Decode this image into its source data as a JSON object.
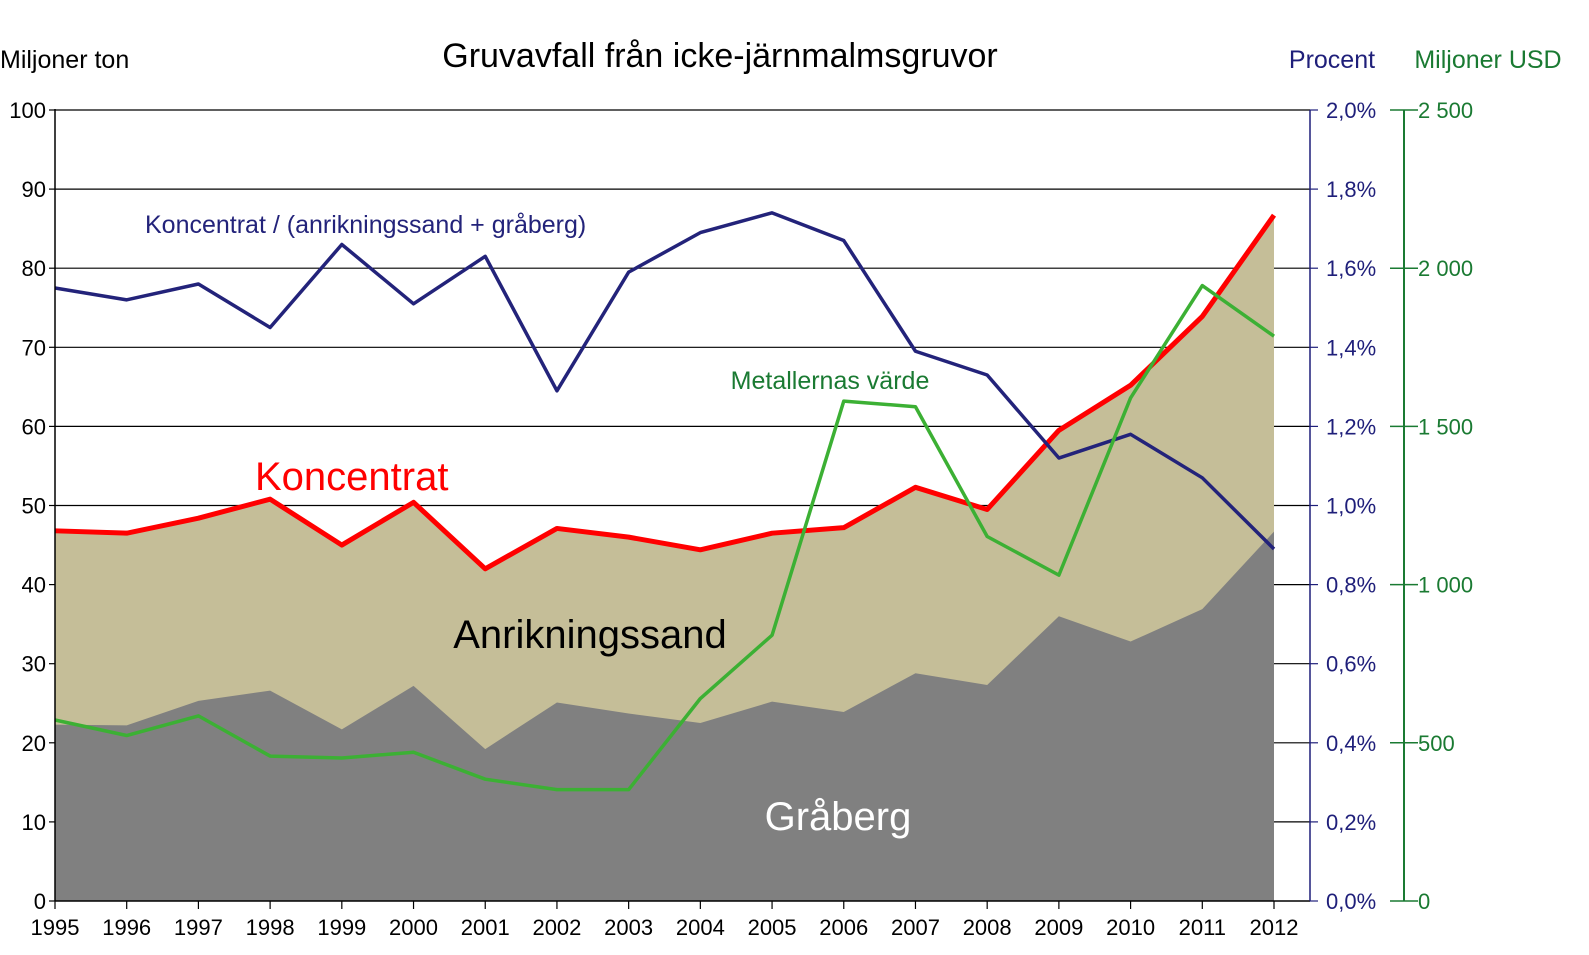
{
  "chart_data": {
    "type": "area",
    "title": "Gruvavfall från icke-järnmalmsgruvor",
    "left_axis": {
      "label": "Miljoner ton",
      "range": [
        0,
        100
      ],
      "ticks": [
        "0",
        "10",
        "20",
        "30",
        "40",
        "50",
        "60",
        "70",
        "80",
        "90",
        "100"
      ]
    },
    "right_axis_percent": {
      "label": "Procent",
      "range": [
        0,
        2.0
      ],
      "ticks": [
        "0,0%",
        "0,2%",
        "0,4%",
        "0,6%",
        "0,8%",
        "1,0%",
        "1,2%",
        "1,4%",
        "1,6%",
        "1,8%",
        "2,0%"
      ],
      "color": "#1f1f7a"
    },
    "right_axis_usd": {
      "label": "Miljoner USD",
      "range": [
        0,
        2500
      ],
      "ticks": [
        "0",
        "500",
        "1 000",
        "1 500",
        "2 000",
        "2 500"
      ],
      "color": "#1a7a32"
    },
    "x": [
      "1995",
      "1996",
      "1997",
      "1998",
      "1999",
      "2000",
      "2001",
      "2002",
      "2003",
      "2004",
      "2005",
      "2006",
      "2007",
      "2008",
      "2009",
      "2010",
      "2011",
      "2012"
    ],
    "series": [
      {
        "name": "Gråberg",
        "kind": "area",
        "axis": "left",
        "color": "#808080",
        "values": [
          22.3,
          22.2,
          25.3,
          26.6,
          21.7,
          27.2,
          19.2,
          25.1,
          23.7,
          22.5,
          25.2,
          23.9,
          28.8,
          27.3,
          36.0,
          32.8,
          36.9,
          46.7
        ]
      },
      {
        "name": "Anrikningssand",
        "kind": "area-stacked-top",
        "axis": "left",
        "color": "#c5be98",
        "values": [
          46.8,
          46.5,
          48.4,
          50.8,
          45.0,
          50.4,
          42.0,
          47.1,
          46.0,
          44.4,
          46.5,
          47.2,
          52.3,
          49.5,
          59.5,
          65.2,
          73.9,
          86.7
        ]
      },
      {
        "name": "Koncentrat",
        "kind": "line",
        "axis": "left",
        "color": "#ff0000",
        "values": [
          46.8,
          46.5,
          48.4,
          50.8,
          45.0,
          50.4,
          42.0,
          47.1,
          46.0,
          44.4,
          46.5,
          47.2,
          52.3,
          49.5,
          59.5,
          65.2,
          73.9,
          86.7
        ]
      },
      {
        "name": "Koncentrat / (anrikningssand + gråberg)",
        "kind": "line",
        "axis": "percent",
        "color": "#23237a",
        "values": [
          1.55,
          1.52,
          1.56,
          1.45,
          1.66,
          1.51,
          1.63,
          1.29,
          1.59,
          1.69,
          1.74,
          1.67,
          1.39,
          1.33,
          1.12,
          1.18,
          1.07,
          0.89
        ]
      },
      {
        "name": "Metallernas värde",
        "kind": "line",
        "axis": "usd",
        "color": "#3cb034",
        "values": [
          572,
          523,
          585,
          458,
          452,
          470,
          385,
          352,
          352,
          640,
          840,
          1580,
          1562,
          1152,
          1030,
          1590,
          1945,
          1785
        ]
      }
    ],
    "labels": {
      "koncentrat": "Koncentrat",
      "anrikningssand": "Anrikningssand",
      "graberg": "Gråberg",
      "ratio": "Koncentrat / (anrikningssand + gråberg)",
      "metal_value": "Metallernas värde"
    },
    "label_colors": {
      "koncentrat": "#ff0000",
      "anrikningssand": "#000000",
      "graberg": "#ffffff",
      "ratio": "#23237a",
      "metal_value": "#1a7a32"
    },
    "grid": true
  }
}
